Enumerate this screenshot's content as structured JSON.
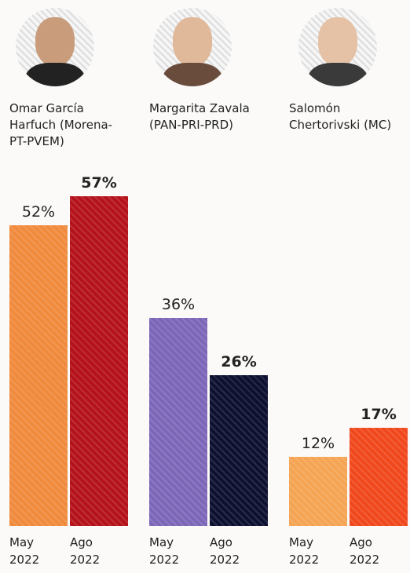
{
  "chart_data": {
    "type": "bar",
    "categories": [
      "Omar García Harfuch (Morena-PT-PVEM)",
      "Margarita Zavala (PAN-PRI-PRD)",
      "Salomón Chertorivski (MC)"
    ],
    "series": [
      {
        "name": "May 2022",
        "colors": [
          "#f08a3c",
          "#7c66b8",
          "#f4a452"
        ],
        "values": [
          52,
          36,
          12
        ],
        "value_labels": [
          "52%",
          "36%",
          "12%"
        ]
      },
      {
        "name": "Ago 2022",
        "colors": [
          "#b5121b",
          "#0d1030",
          "#f0481c"
        ],
        "values": [
          57,
          26,
          17
        ],
        "value_labels": [
          "57%",
          "26%",
          "17%"
        ]
      }
    ]
  }
}
